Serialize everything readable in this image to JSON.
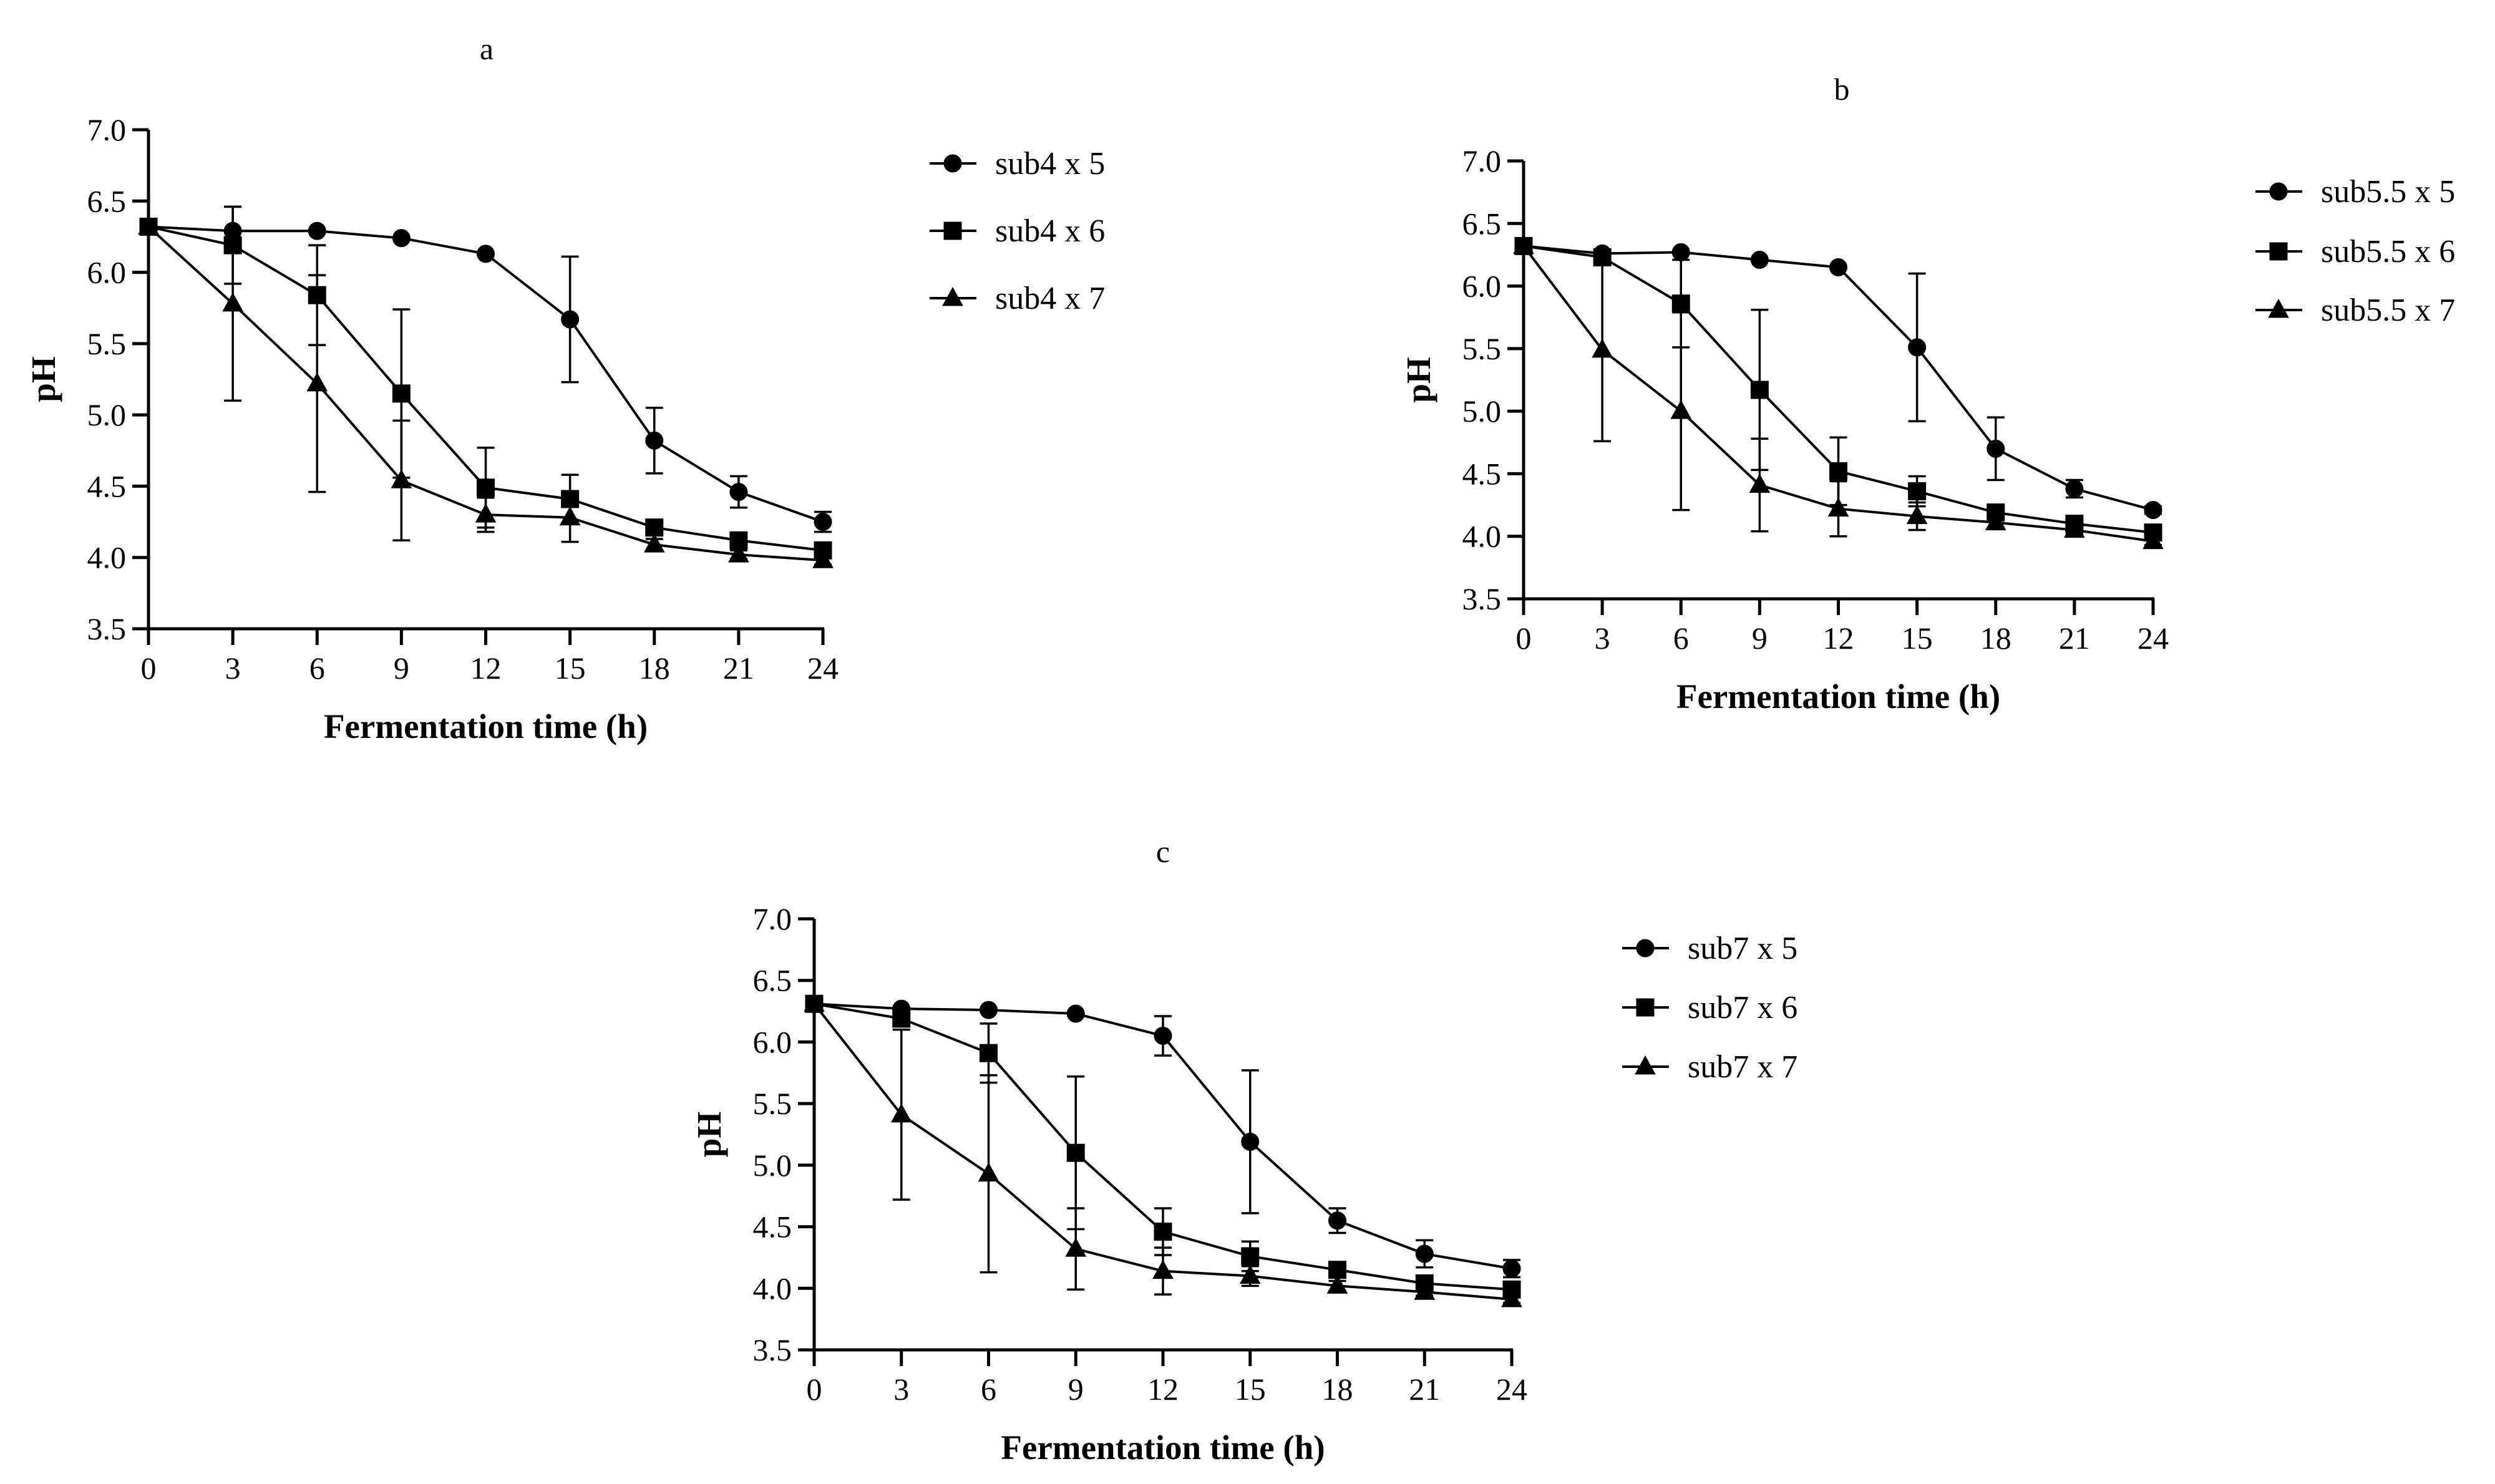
{
  "chart_data": [
    {
      "type": "line",
      "panel_label": "a",
      "xlabel": "Fermentation time (h)",
      "ylabel": "pH",
      "xlim": [
        0,
        24
      ],
      "ylim": [
        3.5,
        7.0
      ],
      "xticks": [
        0,
        3,
        6,
        9,
        12,
        15,
        18,
        21,
        24
      ],
      "xtick_labels": [
        "0",
        "3",
        "6",
        "9",
        "12",
        "15",
        "18",
        "21",
        "24"
      ],
      "yticks": [
        3.5,
        4.0,
        4.5,
        5.0,
        5.5,
        6.0,
        6.5,
        7.0
      ],
      "ytick_labels": [
        "3.5",
        "4.0",
        "4.5",
        "5.0",
        "5.5",
        "6.0",
        "6.5",
        "7.0"
      ],
      "grid": false,
      "legend_position": "right",
      "x": [
        0,
        3,
        6,
        9,
        12,
        15,
        18,
        21,
        24
      ],
      "series": [
        {
          "name": "sub4 x 5",
          "marker": "circle",
          "values": [
            6.32,
            6.29,
            6.29,
            6.24,
            6.13,
            5.67,
            4.82,
            4.46,
            4.25
          ],
          "errors": [
            0.0,
            0.0,
            0.0,
            0.0,
            0.0,
            0.44,
            0.23,
            0.11,
            0.07
          ]
        },
        {
          "name": "sub4 x 6",
          "marker": "square",
          "values": [
            6.32,
            6.19,
            5.84,
            5.15,
            4.49,
            4.41,
            4.21,
            4.12,
            4.05
          ],
          "errors": [
            0.0,
            0.27,
            0.35,
            0.59,
            0.28,
            0.17,
            0.04,
            0.03,
            0.03
          ]
        },
        {
          "name": "sub4 x 7",
          "marker": "triangle",
          "values": [
            6.32,
            5.78,
            5.22,
            4.54,
            4.3,
            4.28,
            4.09,
            4.02,
            3.98
          ],
          "errors": [
            0.0,
            0.68,
            0.76,
            0.42,
            0.12,
            0.17,
            0.04,
            0.03,
            0.03
          ]
        }
      ]
    },
    {
      "type": "line",
      "panel_label": "b",
      "xlabel": "Fermentation time (h)",
      "ylabel": "pH",
      "xlim": [
        0,
        24
      ],
      "ylim": [
        3.5,
        7.0
      ],
      "xticks": [
        0,
        3,
        6,
        9,
        12,
        15,
        18,
        21,
        24
      ],
      "xtick_labels": [
        "0",
        "3",
        "6",
        "9",
        "12",
        "15",
        "18",
        "21",
        "24"
      ],
      "yticks": [
        3.5,
        4.0,
        4.5,
        5.0,
        5.5,
        6.0,
        6.5,
        7.0
      ],
      "ytick_labels": [
        "3.5",
        "4.0",
        "4.5",
        "5.0",
        "5.5",
        "6.0",
        "6.5",
        "7.0"
      ],
      "grid": false,
      "legend_position": "right",
      "x": [
        0,
        3,
        6,
        9,
        12,
        15,
        18,
        21,
        24
      ],
      "series": [
        {
          "name": "sub5.5 x 5",
          "marker": "circle",
          "values": [
            6.32,
            6.26,
            6.27,
            6.21,
            6.15,
            5.51,
            4.7,
            4.38,
            4.21
          ],
          "errors": [
            0.0,
            0.0,
            0.0,
            0.0,
            0.0,
            0.59,
            0.25,
            0.07,
            0.03
          ]
        },
        {
          "name": "sub5.5 x 6",
          "marker": "square",
          "values": [
            6.32,
            6.23,
            5.86,
            5.17,
            4.52,
            4.36,
            4.19,
            4.1,
            4.03
          ],
          "errors": [
            0.0,
            0.0,
            0.35,
            0.64,
            0.27,
            0.12,
            0.04,
            0.03,
            0.03
          ]
        },
        {
          "name": "sub5.5 x 7",
          "marker": "triangle",
          "values": [
            6.32,
            5.49,
            5.0,
            4.41,
            4.22,
            4.16,
            4.11,
            4.05,
            3.96
          ],
          "errors": [
            0.0,
            0.73,
            0.79,
            0.37,
            0.22,
            0.11,
            0.04,
            0.03,
            0.03
          ]
        }
      ]
    },
    {
      "type": "line",
      "panel_label": "c",
      "xlabel": "Fermentation time (h)",
      "ylabel": "pH",
      "xlim": [
        0,
        24
      ],
      "ylim": [
        3.5,
        7.0
      ],
      "xticks": [
        0,
        3,
        6,
        9,
        12,
        15,
        18,
        21,
        24
      ],
      "xtick_labels": [
        "0",
        "3",
        "6",
        "9",
        "12",
        "15",
        "18",
        "21",
        "24"
      ],
      "yticks": [
        3.5,
        4.0,
        4.5,
        5.0,
        5.5,
        6.0,
        6.5,
        7.0
      ],
      "ytick_labels": [
        "3.5",
        "4.0",
        "4.5",
        "5.0",
        "5.5",
        "6.0",
        "6.5",
        "7.0"
      ],
      "grid": false,
      "legend_position": "right",
      "x": [
        0,
        3,
        6,
        9,
        12,
        15,
        18,
        21,
        24
      ],
      "series": [
        {
          "name": "sub7 x 5",
          "marker": "circle",
          "values": [
            6.31,
            6.27,
            6.26,
            6.23,
            6.05,
            5.19,
            4.55,
            4.28,
            4.16
          ],
          "errors": [
            0.0,
            0.0,
            0.0,
            0.0,
            0.16,
            0.58,
            0.1,
            0.11,
            0.07
          ]
        },
        {
          "name": "sub7 x 6",
          "marker": "square",
          "values": [
            6.31,
            6.19,
            5.91,
            5.1,
            4.46,
            4.26,
            4.15,
            4.04,
            3.99
          ],
          "errors": [
            0.0,
            0.0,
            0.24,
            0.62,
            0.19,
            0.12,
            0.04,
            0.03,
            0.03
          ]
        },
        {
          "name": "sub7 x 7",
          "marker": "triangle",
          "values": [
            6.31,
            5.41,
            4.93,
            4.32,
            4.14,
            4.1,
            4.02,
            3.97,
            3.91
          ],
          "errors": [
            0.0,
            0.69,
            0.8,
            0.33,
            0.19,
            0.08,
            0.04,
            0.03,
            0.03
          ]
        }
      ]
    }
  ]
}
